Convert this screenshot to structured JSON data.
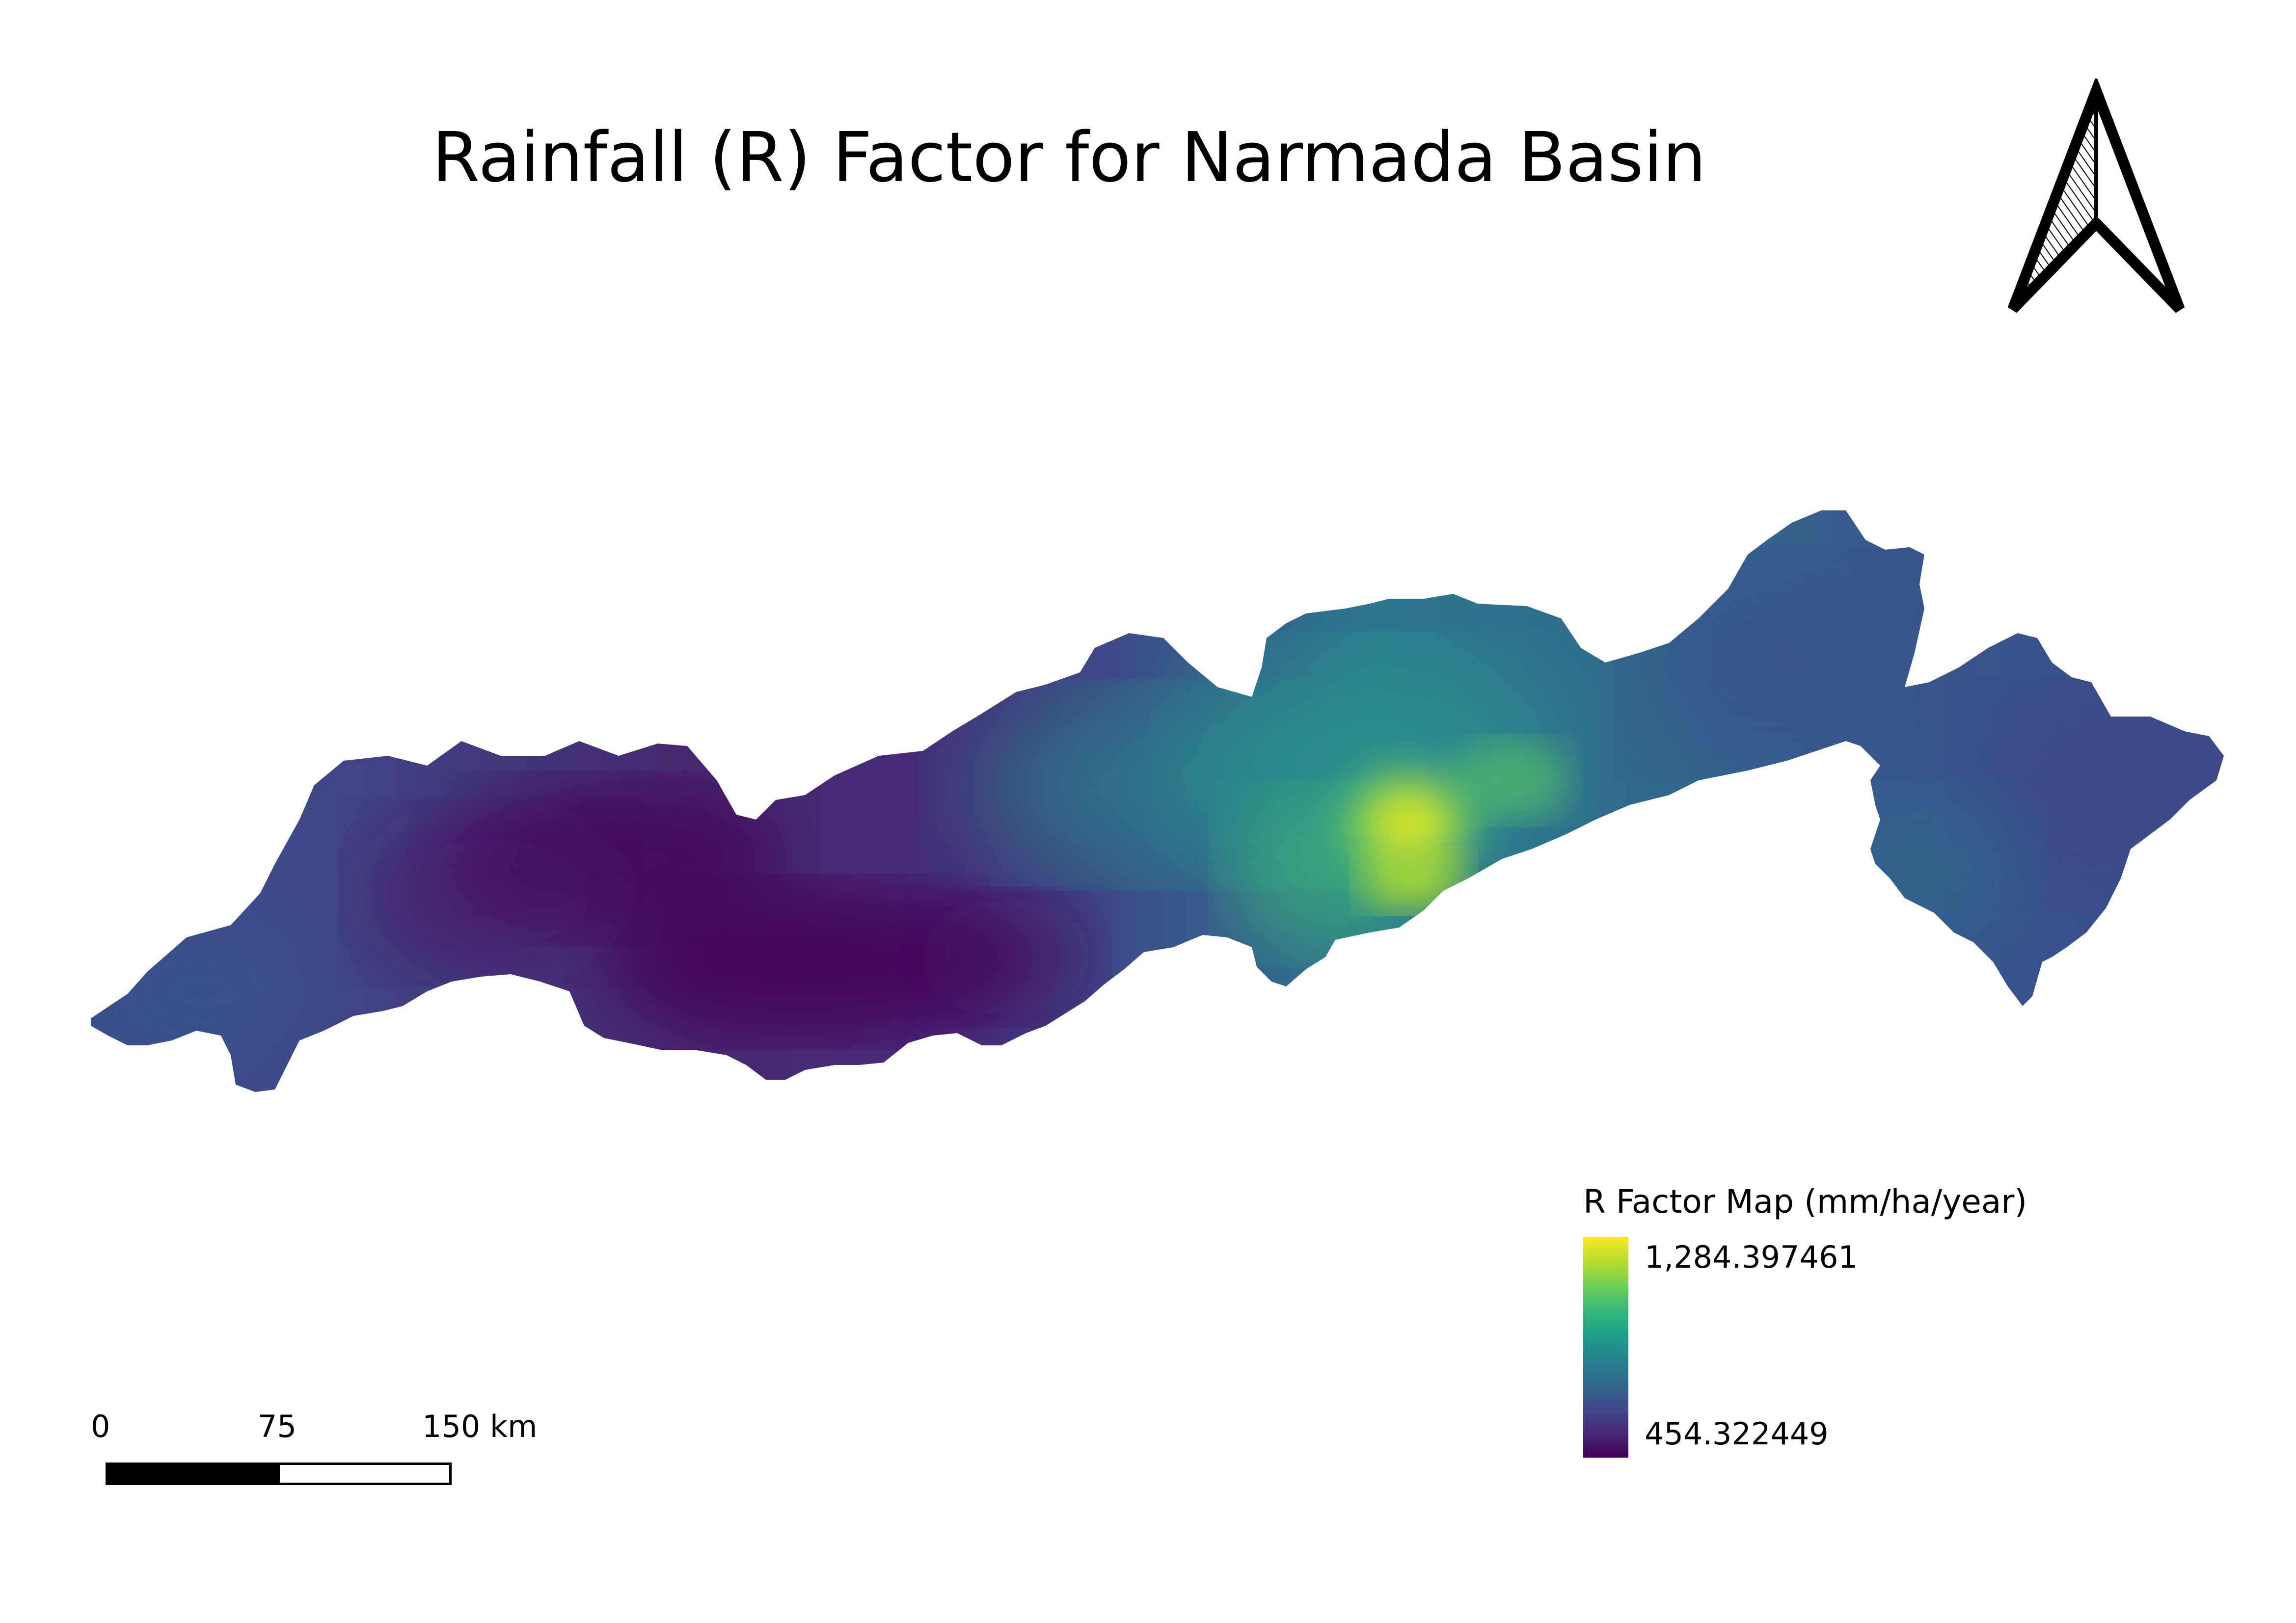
{
  "title": "Rainfall (R) Factor for Narmada Basin",
  "north_arrow": {
    "icon": "north-arrow-icon"
  },
  "legend": {
    "title": "R Factor Map (mm/ha/year)",
    "max_label": "1,284.397461",
    "min_label": "454.322449",
    "max_value": 1284.397461,
    "min_value": 454.322449,
    "ramp": [
      "#440154",
      "#482878",
      "#3e4989",
      "#31688e",
      "#26828e",
      "#1f9e89",
      "#35b779",
      "#6ece58",
      "#b5de2b",
      "#fde725"
    ]
  },
  "scalebar": {
    "labels": [
      "0",
      "75",
      "150 km"
    ],
    "colors": [
      "#000000",
      "#ffffff"
    ]
  },
  "map": {
    "region": "Narmada Basin",
    "colormap": "viridis",
    "colors": {
      "low": "#440154",
      "low_mid": "#3b528b",
      "mid": "#21918c",
      "high_mid": "#5ec962",
      "high": "#fde725"
    }
  }
}
